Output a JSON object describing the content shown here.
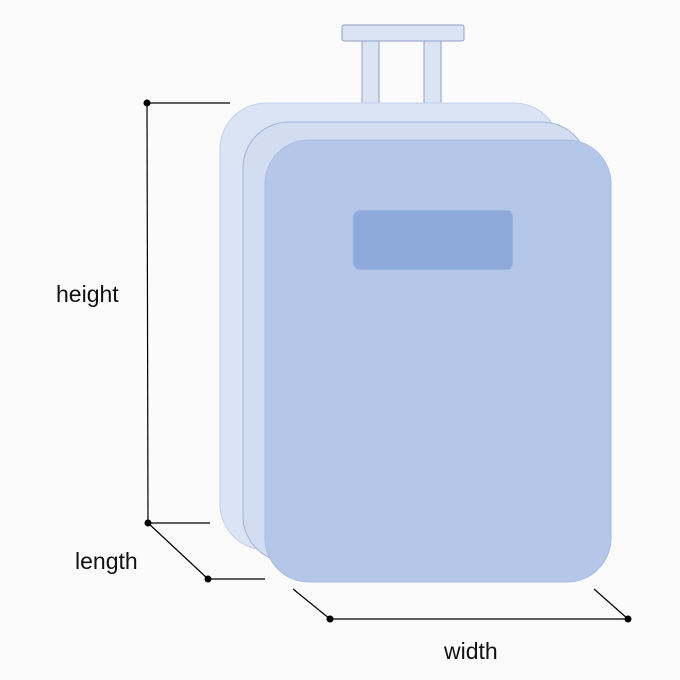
{
  "diagram": {
    "subject": "suitcase-dimensions",
    "labels": {
      "height": "height",
      "length": "length",
      "width": "width"
    },
    "colors": {
      "body_back": "#dbe4f4",
      "body_middle": "#d3ddf1",
      "body_front": "#b5c7e8",
      "edge": "#9fb3dc",
      "handle": "#dbe4f4",
      "handle_edge": "#8ea0c4",
      "label_plate": "#8eaadc",
      "dimension_line": "#000000"
    }
  }
}
